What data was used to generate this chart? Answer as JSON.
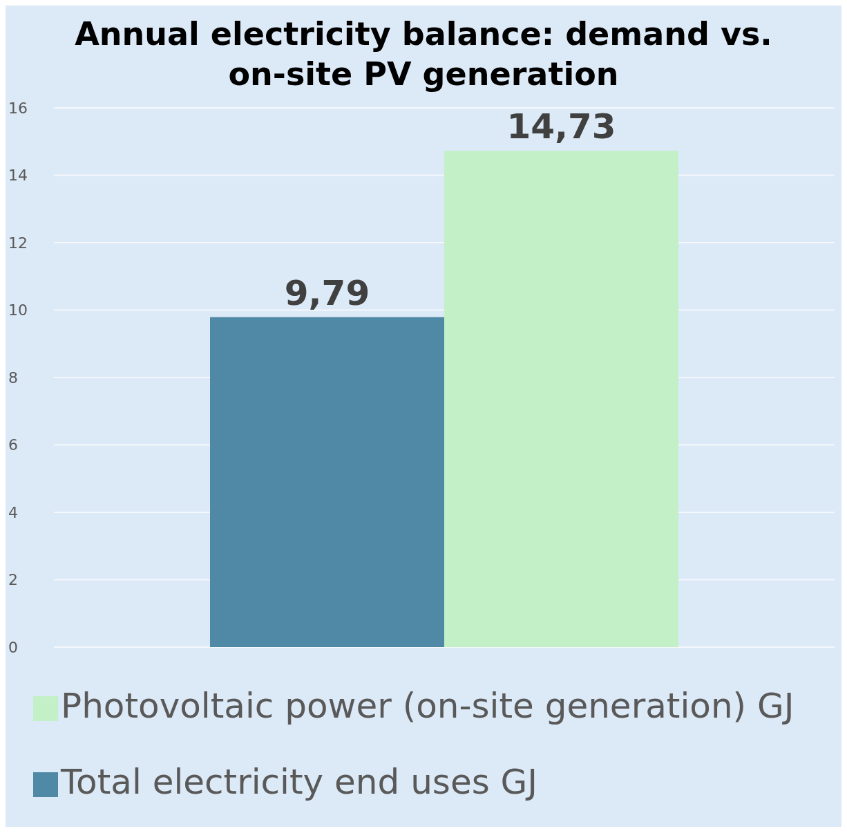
{
  "chart_data": {
    "type": "bar",
    "title": "Annual electricity balance: demand vs. on-site PV generation",
    "categories": [
      null
    ],
    "series": [
      {
        "name": "Total electricity end uses GJ",
        "color": "#5089a6",
        "values": [
          9.79
        ],
        "value_labels": [
          "9,79"
        ]
      },
      {
        "name": "Photovoltaic power (on-site generation) GJ",
        "color": "#c3f0c6",
        "values": [
          14.73
        ],
        "value_labels": [
          "14,73"
        ]
      }
    ],
    "ylim": [
      0,
      16
    ],
    "yticks": [
      0,
      2,
      4,
      6,
      8,
      10,
      12,
      14,
      16
    ],
    "grid": "y",
    "legend": "bottom left"
  }
}
